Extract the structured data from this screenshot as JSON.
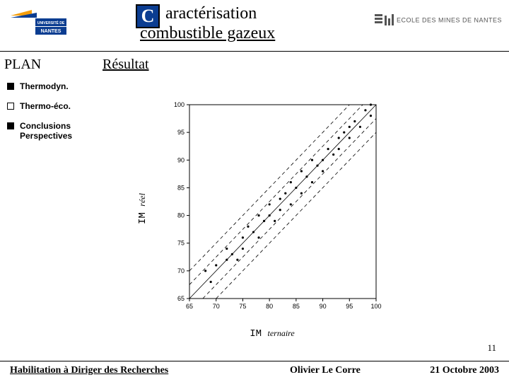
{
  "header": {
    "title_letter": "C",
    "title_line1": "aractérisation",
    "title_line2": "combustible gazeux",
    "mines_text": "ECOLE  DES  MINES  DE  NANTES"
  },
  "plan_label": "PLAN",
  "subtitle": "Résultat",
  "sidebar": {
    "items": [
      {
        "label": "Thermodyn.",
        "filled": true
      },
      {
        "label": "Thermo-éco.",
        "filled": false
      },
      {
        "label": "Conclusions Perspectives",
        "filled": true
      }
    ]
  },
  "chart": {
    "type": "scatter",
    "xlim": [
      65,
      100
    ],
    "ylim": [
      65,
      100
    ],
    "xtick_step": 5,
    "ytick_step": 5,
    "xlabel_prefix": "IM",
    "xlabel_sub": "ternaire",
    "ylabel_prefix": "IM",
    "ylabel_sub": "réel",
    "background_color": "#ffffff",
    "axis_color": "#000000",
    "point_color": "#000000",
    "line_color": "#000000",
    "diagonal_lines": [
      {
        "offset": 0,
        "dash": "solid"
      },
      {
        "offset": 2.5,
        "dash": "dashed"
      },
      {
        "offset": -2.5,
        "dash": "dashed"
      },
      {
        "offset": 5,
        "dash": "dashed"
      },
      {
        "offset": -5,
        "dash": "dashed"
      }
    ],
    "points": [
      [
        68,
        70
      ],
      [
        69,
        68
      ],
      [
        70,
        71
      ],
      [
        72,
        72
      ],
      [
        72,
        74
      ],
      [
        73,
        73
      ],
      [
        74,
        72
      ],
      [
        75,
        76
      ],
      [
        75,
        74
      ],
      [
        76,
        78
      ],
      [
        77,
        77
      ],
      [
        78,
        76
      ],
      [
        78,
        80
      ],
      [
        79,
        79
      ],
      [
        80,
        80
      ],
      [
        80,
        82
      ],
      [
        81,
        79
      ],
      [
        82,
        83
      ],
      [
        82,
        81
      ],
      [
        83,
        84
      ],
      [
        84,
        82
      ],
      [
        84,
        86
      ],
      [
        85,
        85
      ],
      [
        86,
        84
      ],
      [
        86,
        88
      ],
      [
        87,
        87
      ],
      [
        88,
        86
      ],
      [
        88,
        90
      ],
      [
        89,
        89
      ],
      [
        90,
        90
      ],
      [
        90,
        88
      ],
      [
        91,
        92
      ],
      [
        92,
        91
      ],
      [
        93,
        94
      ],
      [
        93,
        92
      ],
      [
        94,
        95
      ],
      [
        95,
        94
      ],
      [
        95,
        96
      ],
      [
        96,
        97
      ],
      [
        97,
        96
      ],
      [
        98,
        99
      ],
      [
        99,
        98
      ],
      [
        99,
        100
      ]
    ]
  },
  "page_number": "11",
  "footer": {
    "left": "Habilitation à Diriger des Recherches",
    "center": "Olivier Le Corre",
    "right": "21 Octobre 2003"
  },
  "colors": {
    "title_box_bg": "#0b3d91",
    "logo_orange": "#f59e0b",
    "logo_blue": "#0b3d91"
  }
}
